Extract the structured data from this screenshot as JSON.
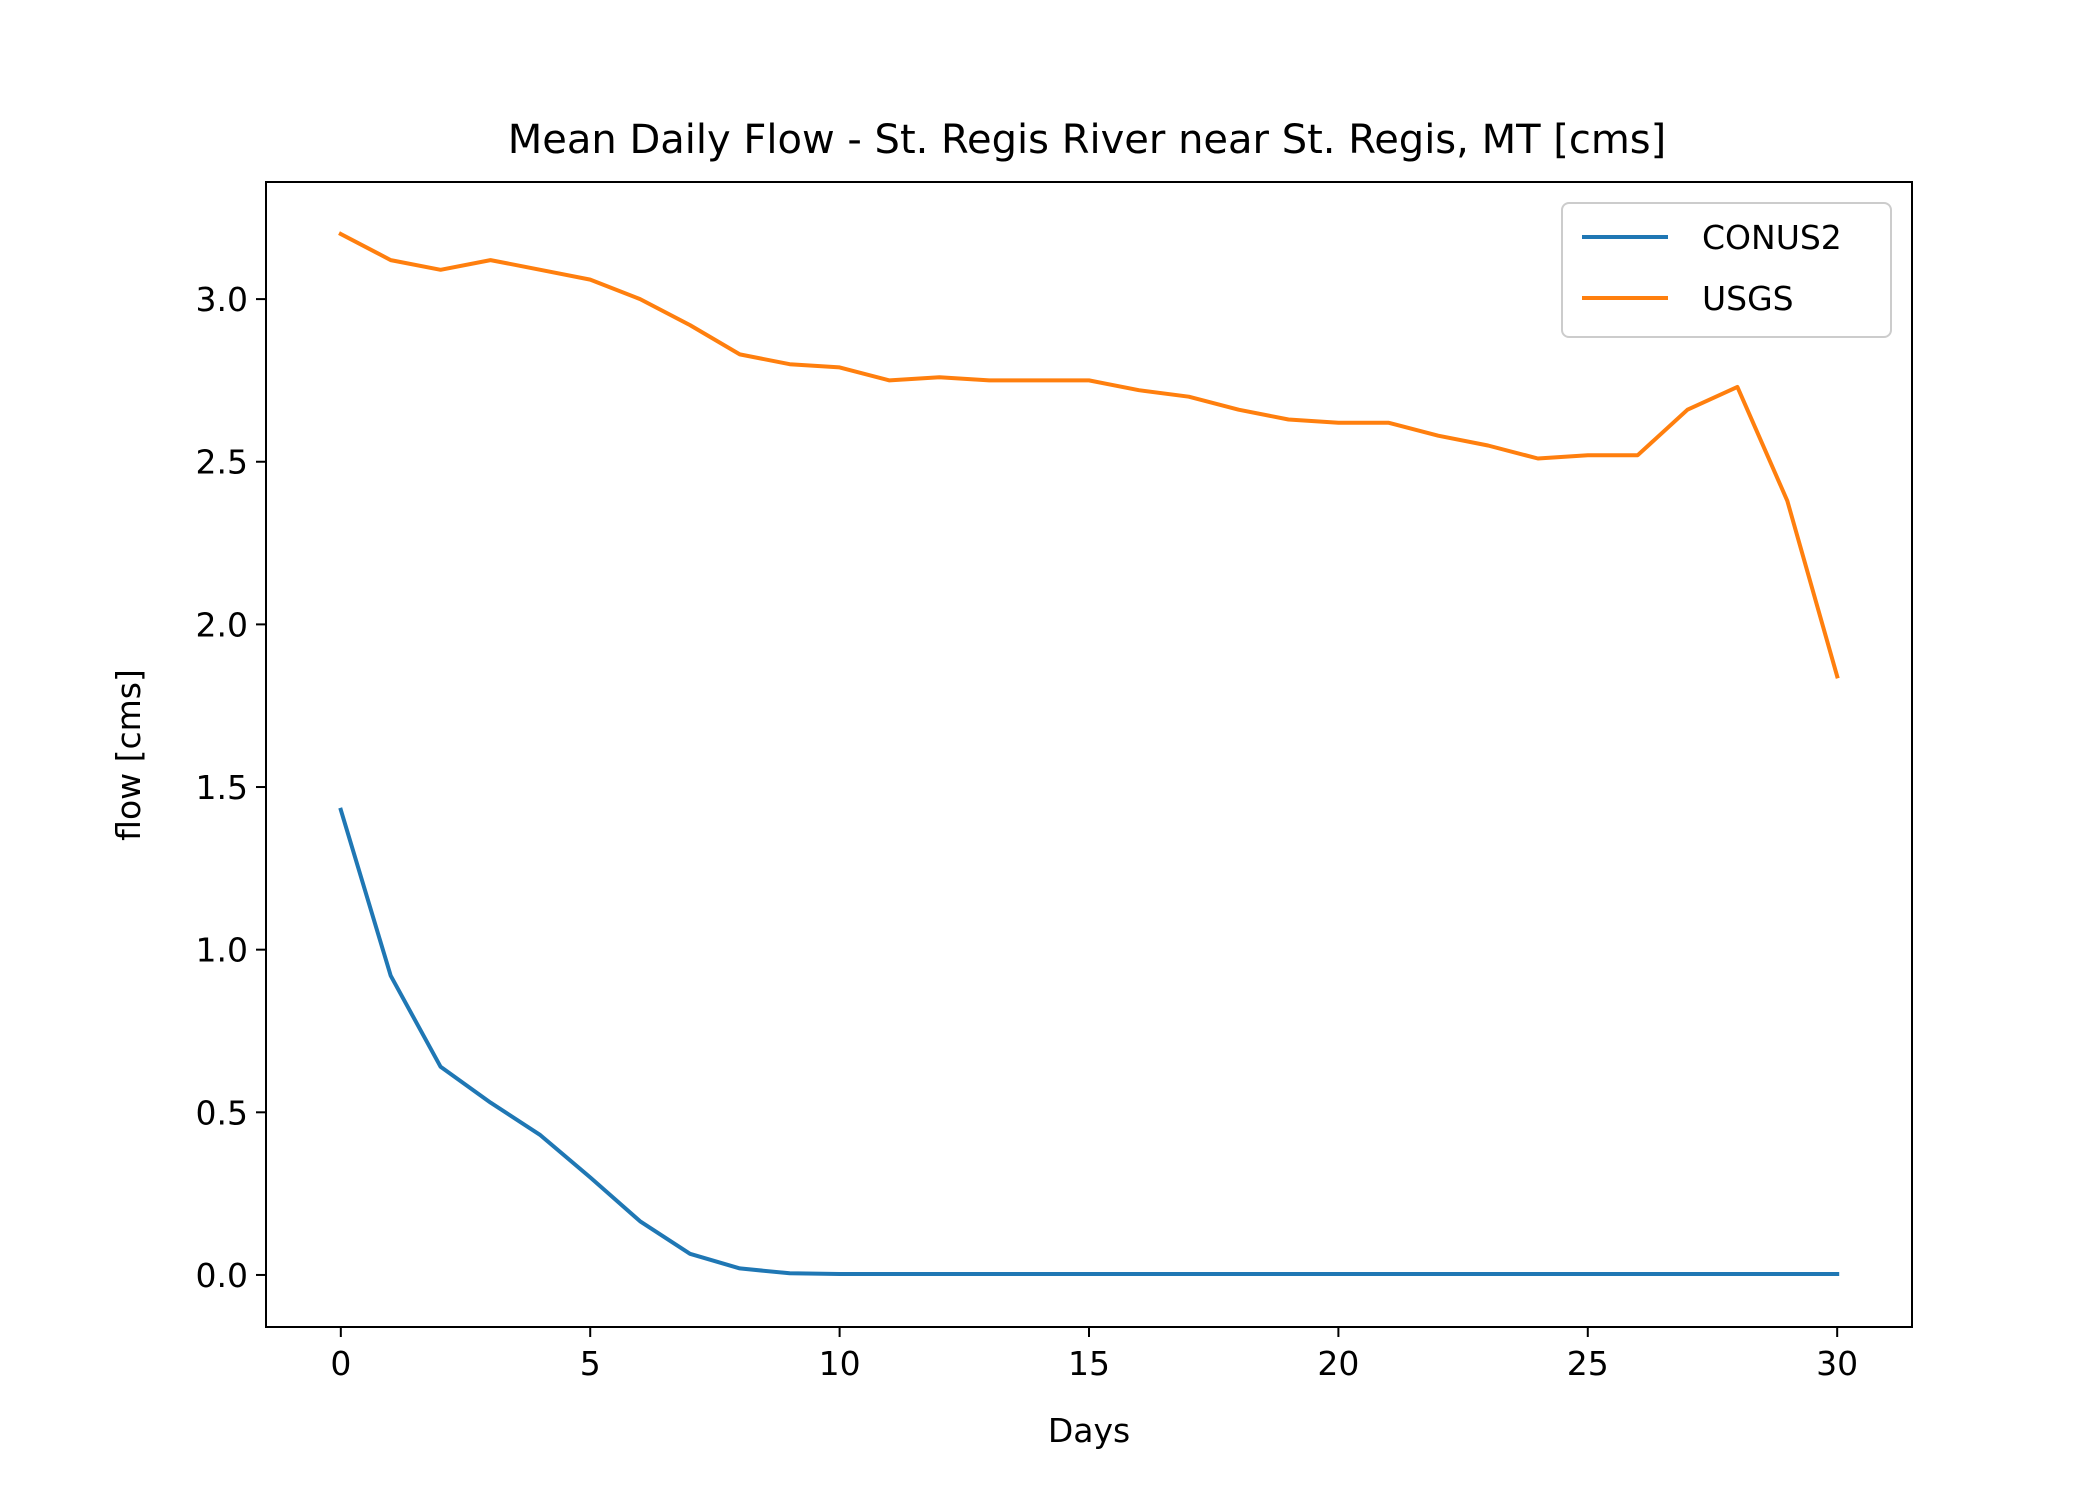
{
  "chart_data": {
    "type": "line",
    "title": "Mean Daily Flow - St. Regis River near St. Regis, MT [cms]",
    "xlabel": "Days",
    "ylabel": "flow [cms]",
    "xlim": [
      -1.5,
      31.5
    ],
    "ylim": [
      -0.16,
      3.36
    ],
    "xticks": [
      0,
      5,
      10,
      15,
      20,
      25,
      30
    ],
    "xtick_labels": [
      "0",
      "5",
      "10",
      "15",
      "20",
      "25",
      "30"
    ],
    "yticks": [
      0.0,
      0.5,
      1.0,
      1.5,
      2.0,
      2.5,
      3.0
    ],
    "ytick_labels": [
      "0.0",
      "0.5",
      "1.0",
      "1.5",
      "2.0",
      "2.5",
      "3.0"
    ],
    "grid": false,
    "legend_position": "top-right",
    "x": [
      0,
      1,
      2,
      3,
      4,
      5,
      6,
      7,
      8,
      9,
      10,
      11,
      12,
      13,
      14,
      15,
      16,
      17,
      18,
      19,
      20,
      21,
      22,
      23,
      24,
      25,
      26,
      27,
      28,
      29,
      30
    ],
    "series": [
      {
        "name": "CONUS2",
        "color": "#1f77b4",
        "values": [
          1.43,
          0.92,
          0.64,
          0.53,
          0.43,
          0.3,
          0.165,
          0.065,
          0.02,
          0.005,
          0.003,
          0.003,
          0.003,
          0.003,
          0.003,
          0.003,
          0.003,
          0.003,
          0.003,
          0.003,
          0.003,
          0.003,
          0.003,
          0.003,
          0.003,
          0.003,
          0.003,
          0.003,
          0.003,
          0.003,
          0.003
        ]
      },
      {
        "name": "USGS",
        "color": "#ff7f0e",
        "values": [
          3.2,
          3.12,
          3.09,
          3.12,
          3.09,
          3.06,
          3.0,
          2.92,
          2.83,
          2.8,
          2.79,
          2.75,
          2.76,
          2.75,
          2.75,
          2.75,
          2.72,
          2.7,
          2.66,
          2.63,
          2.62,
          2.62,
          2.58,
          2.55,
          2.51,
          2.52,
          2.52,
          2.66,
          2.73,
          2.38,
          1.84
        ]
      }
    ]
  }
}
